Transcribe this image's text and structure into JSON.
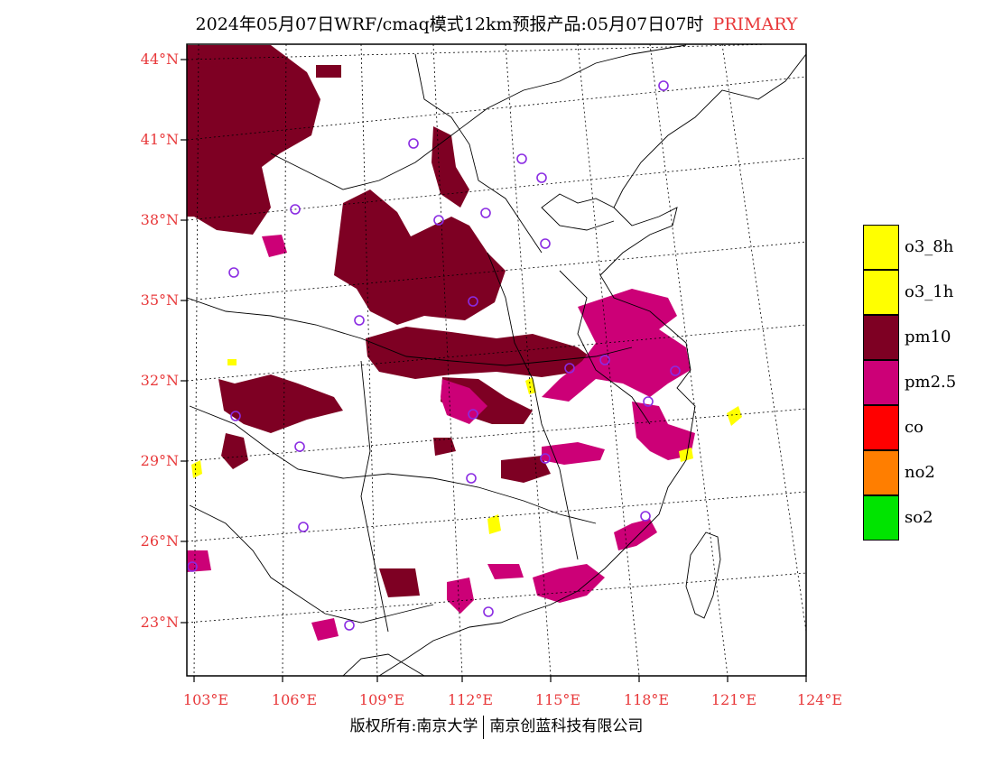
{
  "title": {
    "main": "2024年05月07日WRF/cmaq模式12km预报产品:05月07日07时",
    "tag": "PRIMARY",
    "tag_color": "#e8383a"
  },
  "lat_labels": [
    "44°N",
    "41°N",
    "38°N",
    "35°N",
    "32°N",
    "29°N",
    "26°N",
    "23°N"
  ],
  "lon_labels": [
    "103°E",
    "106°E",
    "109°E",
    "112°E",
    "115°E",
    "118°E",
    "121°E",
    "124°E"
  ],
  "legend": [
    {
      "label": "o3_8h",
      "color": "#ffff00"
    },
    {
      "label": "o3_1h",
      "color": "#ffff00"
    },
    {
      "label": "pm10",
      "color": "#7e0023"
    },
    {
      "label": "pm2.5",
      "color": "#cc0077"
    },
    {
      "label": "co",
      "color": "#ff0000"
    },
    {
      "label": "no2",
      "color": "#ff7e00"
    },
    {
      "label": "so2",
      "color": "#00e400"
    }
  ],
  "footer": {
    "left": "版权所有:南京大学",
    "right": "南京创蓝科技有限公司"
  },
  "colors": {
    "pm10": "#7e0023",
    "pm25": "#cc0077",
    "o3": "#ffff00",
    "station_ring": "#8a2be2",
    "label_red": "#e8383a"
  }
}
